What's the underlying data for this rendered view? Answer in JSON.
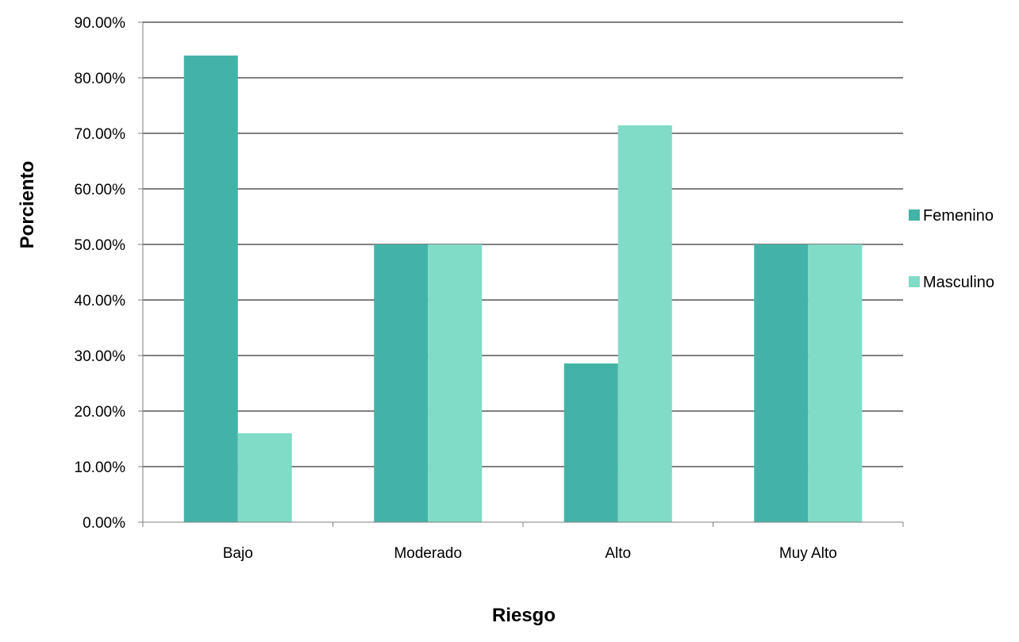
{
  "chart_data": {
    "type": "bar",
    "title": "",
    "xlabel": "Riesgo",
    "ylabel": "Porciento",
    "categories": [
      "Bajo",
      "Moderado",
      "Alto",
      "Muy Alto"
    ],
    "series": [
      {
        "name": "Femenino",
        "color": "#43b3a7",
        "values": [
          84.0,
          50.0,
          28.57,
          50.0
        ]
      },
      {
        "name": "Masculino",
        "color": "#80dbc7",
        "values": [
          16.0,
          50.0,
          71.43,
          50.0
        ]
      }
    ],
    "ylim": [
      0,
      90
    ],
    "yticks": [
      0,
      10,
      20,
      30,
      40,
      50,
      60,
      70,
      80,
      90
    ],
    "ytick_labels": [
      "0.00%",
      "10.00%",
      "20.00%",
      "30.00%",
      "40.00%",
      "50.00%",
      "60.00%",
      "70.00%",
      "80.00%",
      "90.00%"
    ],
    "grid": true,
    "legend_position": "right"
  }
}
